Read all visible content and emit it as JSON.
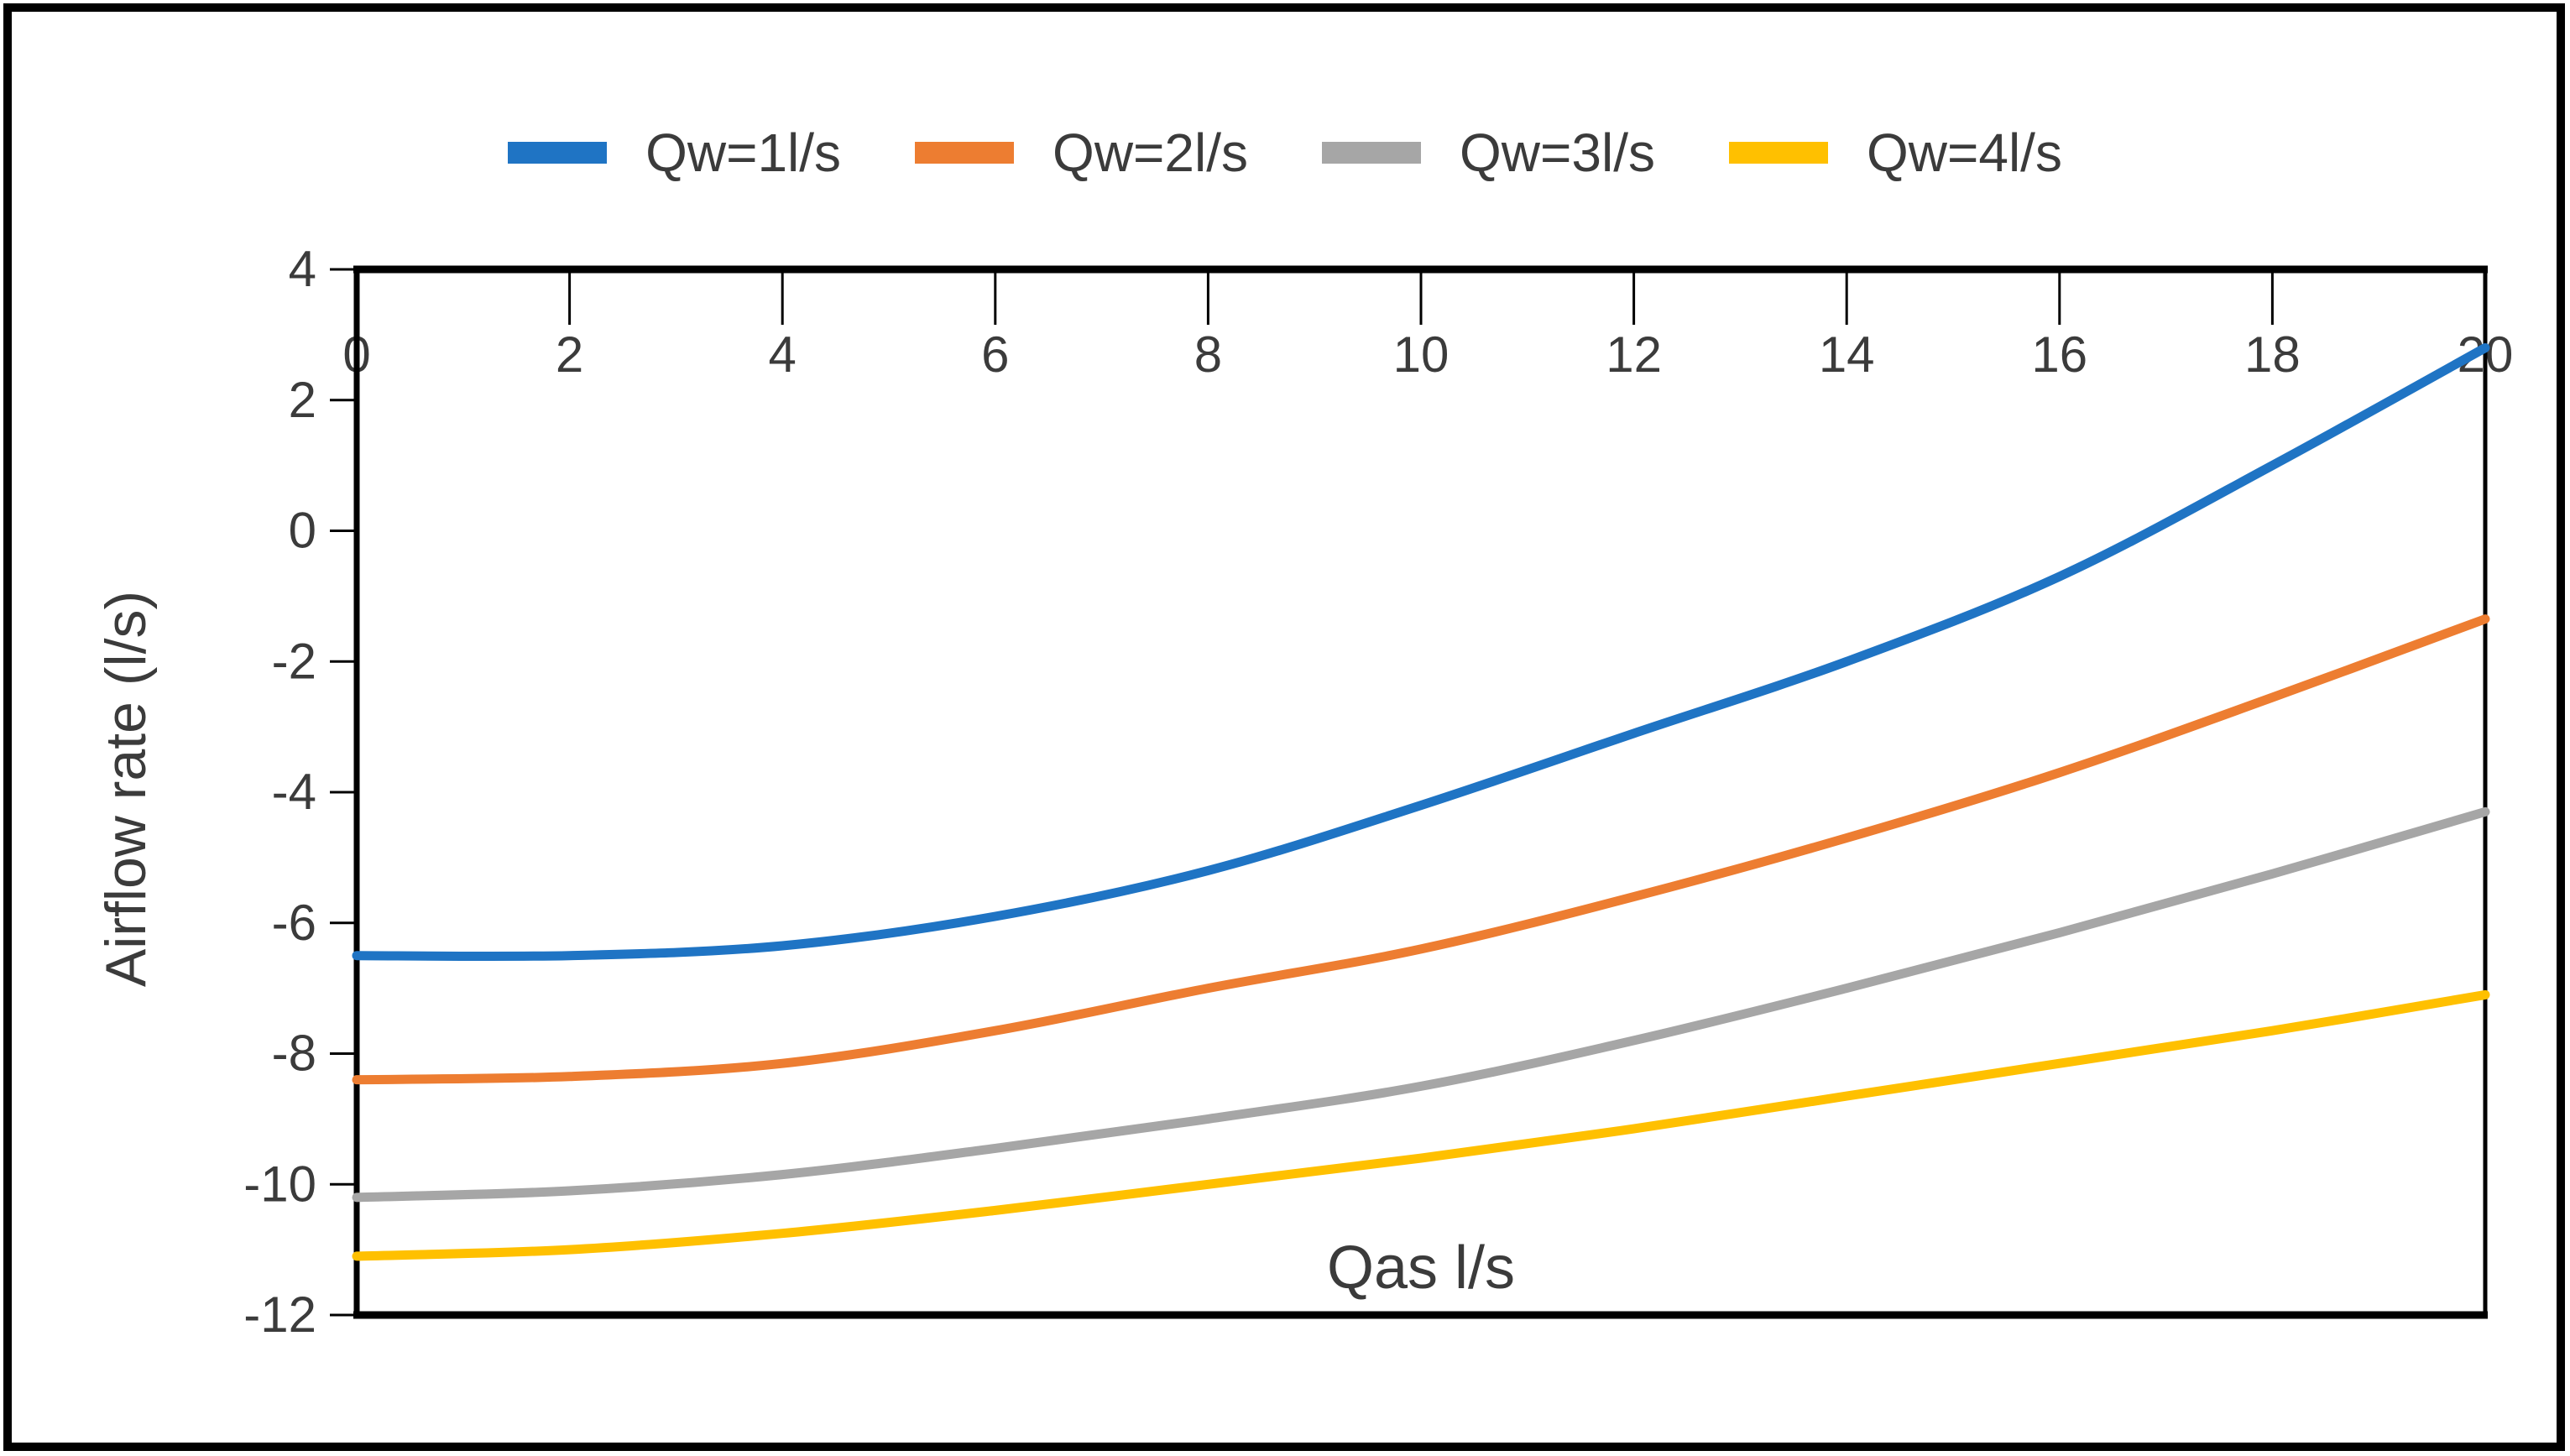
{
  "chart_data": {
    "type": "line",
    "title": "",
    "xlabel": "Qas l/s",
    "ylabel": "Airflow rate (l/s)",
    "xlim": [
      0,
      20
    ],
    "ylim": [
      -12,
      4
    ],
    "x_ticks": [
      0,
      2,
      4,
      6,
      8,
      10,
      12,
      14,
      16,
      18,
      20
    ],
    "y_ticks": [
      4,
      2,
      0,
      -2,
      -4,
      -6,
      -8,
      -10,
      -12
    ],
    "x_axis_position": "top",
    "grid": false,
    "legend_position": "top",
    "axis_color": "#000000",
    "text_color": "#3b3b3b",
    "x": [
      0,
      2,
      4,
      6,
      8,
      10,
      12,
      14,
      16,
      18,
      20
    ],
    "series": [
      {
        "name": "Qw=1l/s",
        "color": "#1F74C4",
        "values": [
          -6.5,
          -6.5,
          -6.35,
          -5.9,
          -5.2,
          -4.2,
          -3.1,
          -2.0,
          -0.7,
          1.0,
          2.8
        ]
      },
      {
        "name": "Qw=2l/s",
        "color": "#ED7D31",
        "values": [
          -8.4,
          -8.35,
          -8.15,
          -7.65,
          -7.0,
          -6.4,
          -5.6,
          -4.7,
          -3.7,
          -2.55,
          -1.35
        ]
      },
      {
        "name": "Qw=3l/s",
        "color": "#A6A6A6",
        "values": [
          -10.2,
          -10.1,
          -9.85,
          -9.45,
          -9.0,
          -8.5,
          -7.8,
          -7.0,
          -6.15,
          -5.25,
          -4.3
        ]
      },
      {
        "name": "Qw=4l/s",
        "color": "#FFC000",
        "values": [
          -11.1,
          -11.0,
          -10.75,
          -10.4,
          -10.0,
          -9.6,
          -9.15,
          -8.65,
          -8.15,
          -7.65,
          -7.1
        ]
      }
    ]
  }
}
